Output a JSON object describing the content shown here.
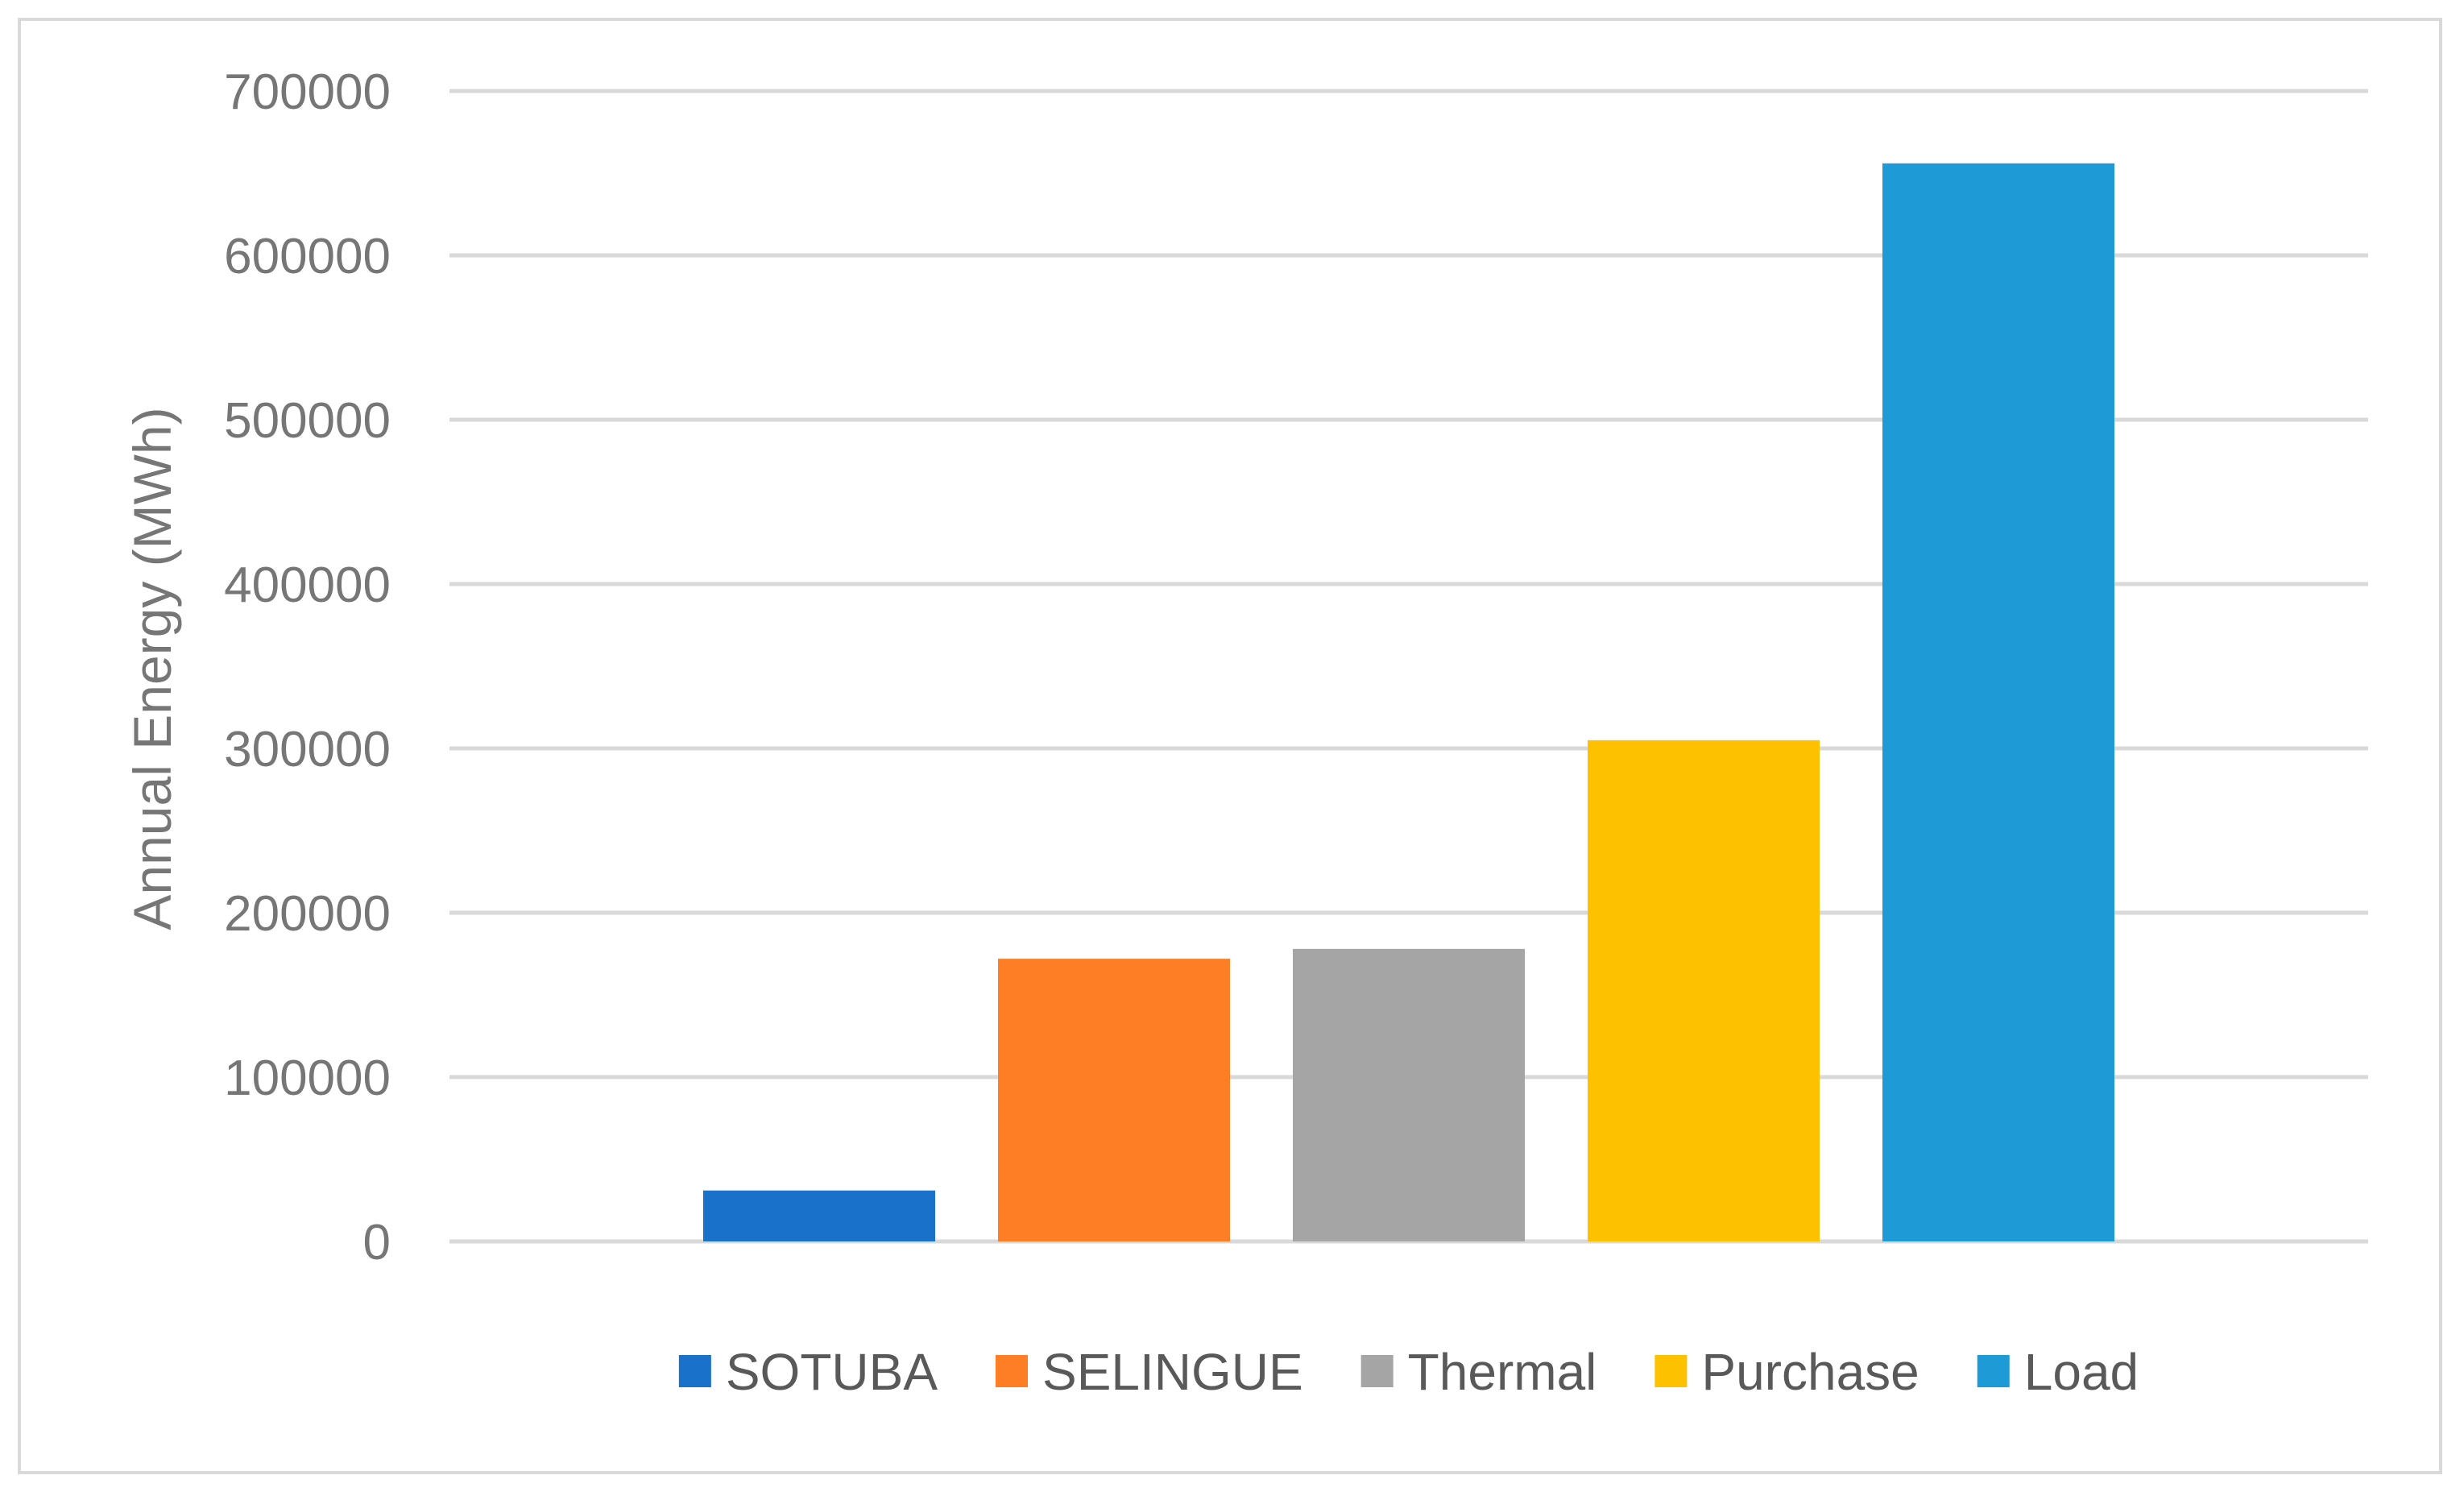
{
  "chart_data": {
    "type": "bar",
    "title": "",
    "xlabel": "",
    "ylabel": "Annual Energy (MWh)",
    "ylim": [
      0,
      700000
    ],
    "yticks": [
      0,
      100000,
      200000,
      300000,
      400000,
      500000,
      600000,
      700000
    ],
    "ytick_labels": [
      "0",
      "100000",
      "200000",
      "300000",
      "400000",
      "500000",
      "600000",
      "700000"
    ],
    "grid": true,
    "legend_position": "bottom",
    "series": [
      {
        "name": "SOTUBA",
        "value": 31000,
        "color": "#1a71c9"
      },
      {
        "name": "SELINGUE",
        "value": 172000,
        "color": "#fd7e24"
      },
      {
        "name": "Thermal",
        "value": 178000,
        "color": "#a5a5a5"
      },
      {
        "name": "Purchase",
        "value": 305000,
        "color": "#fec100"
      },
      {
        "name": "Load",
        "value": 656000,
        "color": "#1e9bd7"
      }
    ]
  }
}
